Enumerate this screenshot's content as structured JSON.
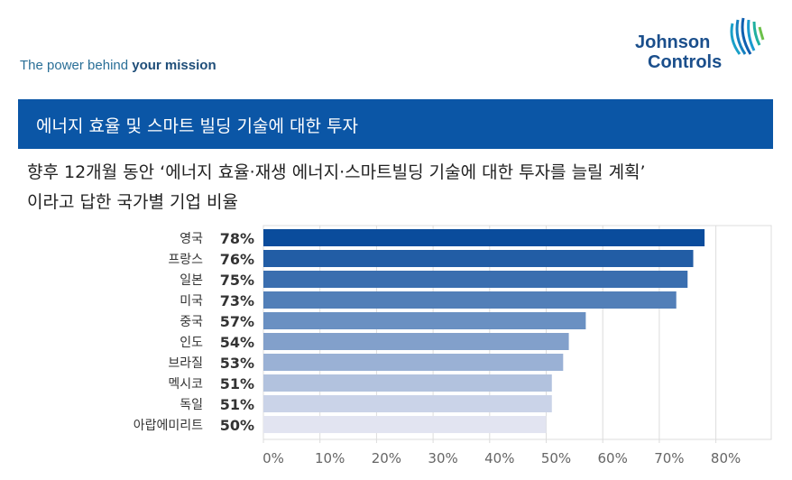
{
  "header": {
    "tagline_prefix": "The power behind ",
    "tagline_bold": "your mission",
    "logo": {
      "line1": "Johnson",
      "line2": "Controls"
    },
    "banner_title": "에너지 효율 및 스마트 빌딩 기술에 대한 투자",
    "banner_color": "#0b56a6"
  },
  "subtitle": {
    "line1": "향후 12개월 동안 ‘에너지 효율·재생 에너지·스마트빌딩 기술에 대한 투자를 늘릴 계획’",
    "line2": "이라고 답한 국가별 기업 비율"
  },
  "chart_data": {
    "type": "bar",
    "orientation": "horizontal",
    "categories": [
      "영국",
      "프랑스",
      "일본",
      "미국",
      "중국",
      "인도",
      "브라질",
      "멕시코",
      "독일",
      "아랍에미리트"
    ],
    "values": [
      78,
      76,
      75,
      73,
      57,
      54,
      53,
      51,
      51,
      50
    ],
    "value_labels": [
      "78%",
      "76%",
      "75%",
      "73%",
      "57%",
      "54%",
      "53%",
      "51%",
      "51%",
      "50%"
    ],
    "xlim": [
      0,
      90
    ],
    "xticks": [
      "0%",
      "10%",
      "20%",
      "30%",
      "40%",
      "50%",
      "60%",
      "70%",
      "80%"
    ],
    "grid": true,
    "color_start": "#0a4c9c",
    "color_end": "#e2e4f1"
  }
}
